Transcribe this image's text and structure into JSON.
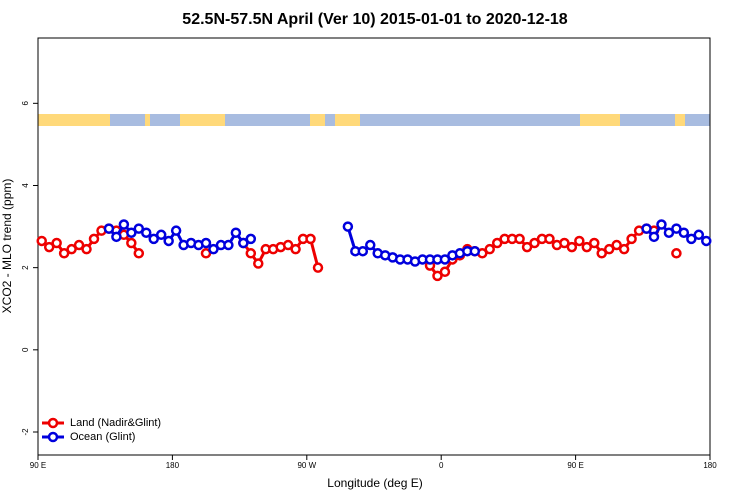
{
  "chart_data": {
    "type": "line",
    "title": "52.5N-57.5N April (Ver 10)   2015-01-01 to 2020-12-18",
    "x_label": "Longitude (deg E)",
    "y_label": "XCO2 - MLO trend (ppm)",
    "x": [
      92.5,
      97.5,
      102.5,
      107.5,
      112.5,
      117.5,
      122.5,
      127.5,
      132.5,
      137.5,
      142.5,
      147.5,
      152.5,
      157.5,
      162.5,
      167.5,
      172.5,
      177.5,
      182.5,
      187.5,
      192.5,
      197.5,
      202.5,
      207.5,
      212.5,
      217.5,
      222.5,
      227.5,
      232.5,
      237.5,
      242.5,
      247.5,
      252.5,
      257.5,
      262.5,
      267.5,
      272.5,
      277.5,
      282.5,
      287.5,
      292.5,
      297.5,
      302.5,
      307.5,
      312.5,
      317.5,
      322.5,
      327.5,
      332.5,
      337.5,
      342.5,
      347.5,
      352.5,
      357.5,
      362.5,
      367.5,
      372.5,
      377.5,
      382.5,
      387.5,
      392.5,
      397.5,
      402.5,
      407.5,
      412.5,
      417.5,
      422.5,
      427.5,
      432.5,
      437.5,
      442.5,
      447.5,
      452.5,
      457.5,
      462.5,
      467.5,
      472.5,
      477.5,
      482.5,
      487.5,
      492.5,
      497.5,
      502.5,
      507.5,
      512.5,
      517.5,
      522.5,
      527.5,
      532.5,
      537.5
    ],
    "series": [
      {
        "name": "Land (Nadir&Glint)",
        "color": "#ee0000",
        "values": [
          2.65,
          2.5,
          2.6,
          2.35,
          2.45,
          2.55,
          2.45,
          2.7,
          2.9,
          2.95,
          2.9,
          2.8,
          2.6,
          2.35,
          null,
          null,
          null,
          null,
          null,
          null,
          null,
          null,
          2.35,
          null,
          null,
          null,
          null,
          2.6,
          2.35,
          2.1,
          2.45,
          2.45,
          2.5,
          2.55,
          2.45,
          2.7,
          2.7,
          2.0,
          null,
          null,
          null,
          null,
          null,
          null,
          null,
          null,
          null,
          null,
          null,
          null,
          null,
          null,
          2.05,
          1.8,
          1.9,
          2.2,
          2.3,
          2.45,
          2.4,
          2.35,
          2.45,
          2.6,
          2.7,
          2.7,
          2.7,
          2.5,
          2.6,
          2.7,
          2.7,
          2.55,
          2.6,
          2.5,
          2.65,
          2.5,
          2.6,
          2.35,
          2.45,
          2.55,
          2.45,
          2.7,
          2.9,
          2.95,
          2.9,
          null,
          null,
          2.35,
          null,
          null,
          null,
          null
        ]
      },
      {
        "name": "Ocean (Glint)",
        "color": "#0000dd",
        "values": [
          null,
          null,
          null,
          null,
          null,
          null,
          null,
          null,
          null,
          2.95,
          2.75,
          3.05,
          2.85,
          2.95,
          2.85,
          2.7,
          2.8,
          2.65,
          2.9,
          2.55,
          2.6,
          2.55,
          2.6,
          2.45,
          2.55,
          2.55,
          2.85,
          2.6,
          2.7,
          null,
          null,
          null,
          null,
          null,
          null,
          null,
          null,
          null,
          null,
          null,
          null,
          3.0,
          2.4,
          2.4,
          2.55,
          2.35,
          2.3,
          2.25,
          2.2,
          2.2,
          2.15,
          2.2,
          2.2,
          2.2,
          2.2,
          2.3,
          2.35,
          2.4,
          2.4,
          null,
          null,
          null,
          null,
          null,
          null,
          null,
          null,
          null,
          null,
          null,
          null,
          null,
          null,
          null,
          null,
          null,
          null,
          null,
          null,
          null,
          null,
          2.95,
          2.75,
          3.05,
          2.85,
          2.95,
          2.85,
          2.7,
          2.8,
          2.65
        ]
      }
    ],
    "xlim": [
      90,
      540
    ],
    "xticks": [
      {
        "value": 90,
        "label": "90 E"
      },
      180,
      {
        "value": 270,
        "label": "90 W"
      },
      {
        "value": 360,
        "label": "0"
      },
      {
        "value": 450,
        "label": "90 E"
      },
      {
        "value": 540,
        "label": "180"
      }
    ],
    "ylim": [
      -2.56,
      7.59
    ],
    "yticks": [
      -2,
      0,
      2,
      4,
      6
    ],
    "legend": "bottom-left"
  }
}
